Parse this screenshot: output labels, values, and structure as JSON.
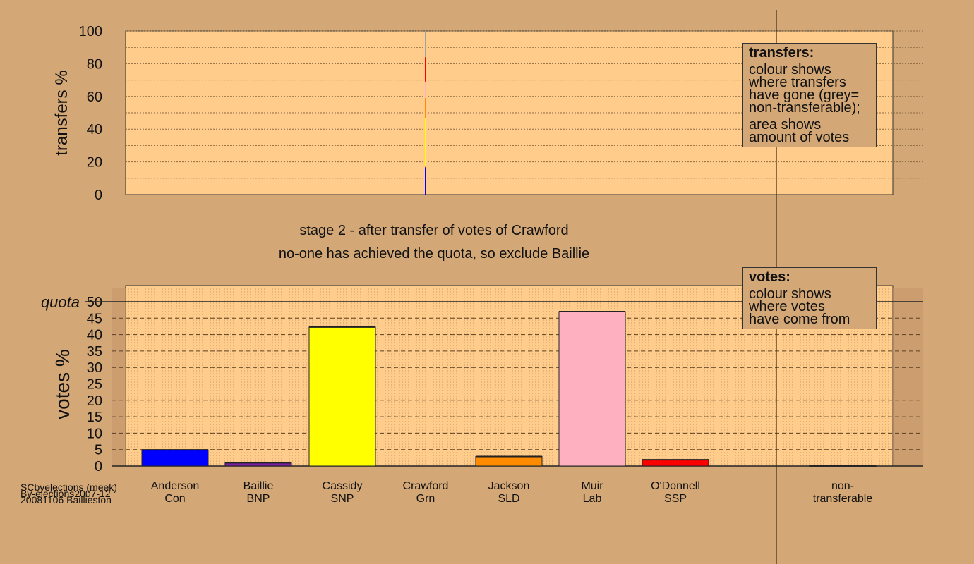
{
  "chart_data": [
    {
      "type": "bar",
      "title": "",
      "ylabel": "transfers %",
      "ylim": [
        0,
        100
      ],
      "yticks": [
        0,
        20,
        40,
        60,
        80,
        100
      ],
      "grid": true,
      "transfer_column": {
        "from": "Crawford",
        "segments": [
          {
            "to": "Anderson",
            "from_pct": 0,
            "to_pct": 16,
            "color": "#0000ff"
          },
          {
            "to": "Baillie",
            "from_pct": 16,
            "to_pct": 17,
            "color": "#7a1fa2"
          },
          {
            "to": "Cassidy",
            "from_pct": 17,
            "to_pct": 47,
            "color": "#ffff00"
          },
          {
            "to": "Jackson",
            "from_pct": 47,
            "to_pct": 59,
            "color": "#ff8c00"
          },
          {
            "to": "Muir",
            "from_pct": 59,
            "to_pct": 69,
            "color": "#ffb0c0"
          },
          {
            "to": "O'Donnell",
            "from_pct": 69,
            "to_pct": 84,
            "color": "#ff0000"
          },
          {
            "to": "non-transferable",
            "from_pct": 84,
            "to_pct": 100,
            "color": "#a0a0a0"
          }
        ]
      },
      "legend": {
        "title": "transfers:",
        "lines1": [
          "colour shows",
          "where transfers",
          "have gone (grey=",
          "non-transferable);"
        ],
        "lines2": [
          "area shows",
          "amount of votes"
        ]
      }
    },
    {
      "type": "bar",
      "ylabel": "votes %",
      "ylim": [
        0,
        50
      ],
      "yticks": [
        0,
        5,
        10,
        15,
        20,
        25,
        30,
        35,
        40,
        45,
        50
      ],
      "quota": {
        "label": "quota",
        "value": 50
      },
      "grid": true,
      "categories": [
        {
          "name": "Anderson",
          "party": "Con",
          "value": 4.9,
          "color": "#0000ff"
        },
        {
          "name": "Baillie",
          "party": "BNP",
          "value": 1.0,
          "color": "#7a1fa2"
        },
        {
          "name": "Cassidy",
          "party": "SNP",
          "value": 42.3,
          "color": "#ffff00"
        },
        {
          "name": "Crawford",
          "party": "Grn",
          "value": 0,
          "color": "#00aa00"
        },
        {
          "name": "Jackson",
          "party": "SLD",
          "value": 2.9,
          "color": "#ff8c00"
        },
        {
          "name": "Muir",
          "party": "Lab",
          "value": 47.0,
          "color": "#ffb0c0"
        },
        {
          "name": "O'Donnell",
          "party": "SSP",
          "value": 1.9,
          "color": "#ff0000"
        },
        {
          "name": "non-",
          "party": "transferable",
          "value": 0.2,
          "color": "#a0a0a0"
        }
      ],
      "legend": {
        "title": "votes:",
        "lines": [
          "colour shows",
          "where votes",
          "have come from"
        ]
      }
    }
  ],
  "stage_title": "stage 2 - after transfer of votes of Crawford",
  "stage_subtitle": "no-one has achieved the quota, so exclude Baillie",
  "footer": [
    "SCbyelections (meek)",
    "By-elections2007-12",
    "20081106 Baillieston"
  ]
}
